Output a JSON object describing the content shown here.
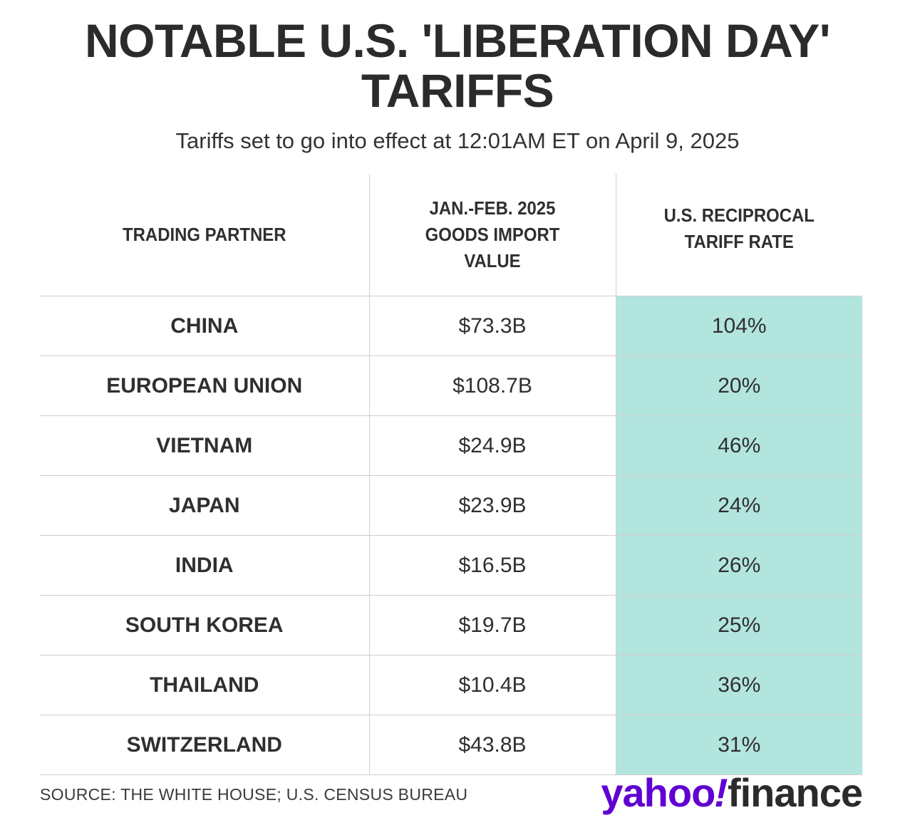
{
  "title_lines": [
    "NOTABLE U.S. 'LIBERATION DAY'",
    "TARIFFS"
  ],
  "subtitle": "Tariffs set to go into effect at 12:01AM ET on April 9, 2025",
  "source": "SOURCE: THE WHITE HOUSE; U.S. CENSUS BUREAU",
  "logo": {
    "yahoo": "yahoo",
    "bang": "!",
    "finance": "finance"
  },
  "colors": {
    "highlight": "#b3e5df",
    "brand_purple": "#6001d2",
    "text": "#2b2b2b"
  },
  "chart_data": {
    "type": "table",
    "title": "NOTABLE U.S. 'LIBERATION DAY' TARIFFS",
    "subtitle": "Tariffs set to go into effect at 12:01AM ET on April 9, 2025",
    "columns": [
      {
        "label_lines": [
          "TRADING PARTNER"
        ]
      },
      {
        "label_lines": [
          "JAN.-FEB. 2025",
          "GOODS IMPORT",
          "VALUE"
        ]
      },
      {
        "label_lines": [
          "U.S. RECIPROCAL",
          "TARIFF RATE"
        ]
      }
    ],
    "rows": [
      {
        "partner": "CHINA",
        "import_value": "$73.3B",
        "tariff_rate": "104%"
      },
      {
        "partner": "EUROPEAN UNION",
        "import_value": "$108.7B",
        "tariff_rate": "20%"
      },
      {
        "partner": "VIETNAM",
        "import_value": "$24.9B",
        "tariff_rate": "46%"
      },
      {
        "partner": "JAPAN",
        "import_value": "$23.9B",
        "tariff_rate": "24%"
      },
      {
        "partner": "INDIA",
        "import_value": "$16.5B",
        "tariff_rate": "26%"
      },
      {
        "partner": "SOUTH KOREA",
        "import_value": "$19.7B",
        "tariff_rate": "25%"
      },
      {
        "partner": "THAILAND",
        "import_value": "$10.4B",
        "tariff_rate": "36%"
      },
      {
        "partner": "SWITZERLAND",
        "import_value": "$43.8B",
        "tariff_rate": "31%"
      }
    ],
    "highlight_column": 2
  }
}
